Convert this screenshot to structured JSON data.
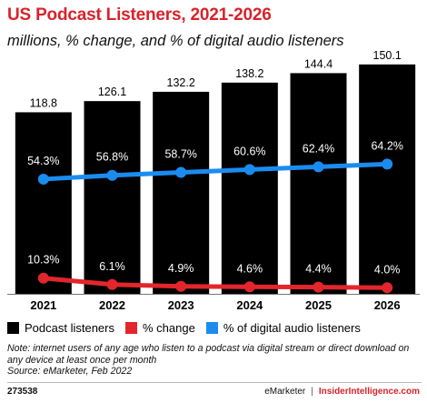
{
  "title": "US Podcast Listeners, 2021-2026",
  "subtitle": "millions, % change, and % of digital audio listeners",
  "colors": {
    "bars": "#000000",
    "change": "#e3262b",
    "share": "#1a8cf0",
    "title": "#d8232a"
  },
  "chart_data": {
    "type": "bar",
    "categories": [
      "2021",
      "2022",
      "2023",
      "2024",
      "2025",
      "2026"
    ],
    "series": [
      {
        "name": "Podcast listeners",
        "type": "bar",
        "values": [
          118.8,
          126.1,
          132.2,
          138.2,
          144.4,
          150.1
        ],
        "labels": [
          "118.8",
          "126.1",
          "132.2",
          "138.2",
          "144.4",
          "150.1"
        ]
      },
      {
        "name": "% change",
        "type": "line",
        "values": [
          10.3,
          6.1,
          4.9,
          4.6,
          4.4,
          4.0
        ],
        "labels": [
          "10.3%",
          "6.1%",
          "4.9%",
          "4.6%",
          "4.4%",
          "4.0%"
        ]
      },
      {
        "name": "% of digital audio listeners",
        "type": "line",
        "values": [
          54.3,
          56.8,
          58.7,
          60.6,
          62.4,
          64.2
        ],
        "labels": [
          "54.3%",
          "56.8%",
          "58.7%",
          "60.6%",
          "62.4%",
          "64.2%"
        ]
      }
    ],
    "legend_position": "bottom",
    "grid": false
  },
  "note": "Note: internet users of any age who listen to a podcast via digital stream or direct download on any device at least once per month",
  "source": "Source: eMarketer, Feb 2022",
  "footer": {
    "id": "273538",
    "brand1": "eMarketer",
    "separator": "|",
    "brand2": "InsiderIntelligence.com"
  }
}
